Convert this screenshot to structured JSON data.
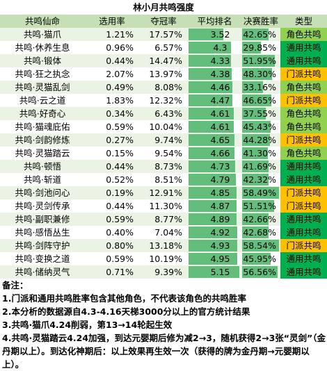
{
  "title": "林小月共鸣强度",
  "headers": [
    "共鸣仙命",
    "选用率",
    "夺冠率",
    "平均排名",
    "决赛胜率",
    "类型"
  ],
  "colors": {
    "header_bg": "#c6dfb4",
    "row_a": "#ebf3e4",
    "row_b": "#ffffff",
    "rank_bar": "#63be7b",
    "win_bar": "#63be7b",
    "type_role": "#92d050",
    "type_sect": "#ffc000",
    "type_general": "#00b050"
  },
  "chart_data": {
    "type": "table",
    "rank_scale_max": 5.3,
    "win_scale_max": 60,
    "rows": [
      {
        "name": "共鸣·猫爪",
        "pick": "1.21%",
        "champ": "17.57%",
        "rank": 3.52,
        "rank_label": "3.52",
        "win": 42.65,
        "win_label": "42.65%",
        "type": "角色共鸣",
        "type_key": "role"
      },
      {
        "name": "共鸣·休养生息",
        "pick": "0.96%",
        "champ": "6.57%",
        "rank": 4.3,
        "rank_label": "4.3",
        "win": 29.85,
        "win_label": "29.85%",
        "type": "通用共鸣",
        "type_key": "general"
      },
      {
        "name": "共鸣·锻体",
        "pick": "0.44%",
        "champ": "14.47%",
        "rank": 4.33,
        "rank_label": "4.33",
        "win": 51.95,
        "win_label": "51.95%",
        "type": "通用共鸣",
        "type_key": "general"
      },
      {
        "name": "共鸣·狂之执念",
        "pick": "2.07%",
        "champ": "13.97%",
        "rank": 4.38,
        "rank_label": "4.38",
        "win": 48.3,
        "win_label": "48.30%",
        "type": "门派共鸣",
        "type_key": "sect"
      },
      {
        "name": "共鸣·灵猫乱剑",
        "pick": "0.49%",
        "champ": "8.08%",
        "rank": 4.46,
        "rank_label": "4.46",
        "win": 33.16,
        "win_label": "33.16%",
        "type": "角色共鸣",
        "type_key": "role"
      },
      {
        "name": "共鸣·云之道",
        "pick": "1.83%",
        "champ": "12.32%",
        "rank": 4.47,
        "rank_label": "4.47",
        "win": 46.65,
        "win_label": "46.65%",
        "type": "门派共鸣",
        "type_key": "sect"
      },
      {
        "name": "共鸣·好奇心",
        "pick": "0.34%",
        "champ": "6.43%",
        "rank": 4.61,
        "rank_label": "4.61",
        "win": 37.55,
        "win_label": "37.55%",
        "type": "角色共鸣",
        "type_key": "role"
      },
      {
        "name": "共鸣·猫魂庇佑",
        "pick": "0.59%",
        "champ": "10.04%",
        "rank": 4.61,
        "rank_label": "4.61",
        "win": 45.43,
        "win_label": "45.43%",
        "type": "角色共鸣",
        "type_key": "role"
      },
      {
        "name": "共鸣·剑韵修炼",
        "pick": "0.27%",
        "champ": "9.74%",
        "rank": 4.65,
        "rank_label": "4.65",
        "win": 44.28,
        "win_label": "44.28%",
        "type": "门派共鸣",
        "type_key": "sect"
      },
      {
        "name": "共鸣·灵猫踏云",
        "pick": "0.15%",
        "champ": "9.54%",
        "rank": 4.66,
        "rank_label": "4.66",
        "win": 41.3,
        "win_label": "41.30%",
        "type": "角色共鸣",
        "type_key": "role"
      },
      {
        "name": "共鸣·顿悟",
        "pick": "0.44%",
        "champ": "8.73%",
        "rank": 4.73,
        "rank_label": "4.73",
        "win": 41.69,
        "win_label": "41.69%",
        "type": "通用共鸣",
        "type_key": "general"
      },
      {
        "name": "共鸣·斩道",
        "pick": "0.52%",
        "champ": "8.51%",
        "rank": 4.79,
        "rank_label": "4.79",
        "win": 42.32,
        "win_label": "42.32%",
        "type": "通用共鸣",
        "type_key": "general"
      },
      {
        "name": "共鸣·剑池问心",
        "pick": "0.19%",
        "champ": "12.91%",
        "rank": 4.85,
        "rank_label": "4.85",
        "win": 58.49,
        "win_label": "58.49%",
        "type": "门派共鸣",
        "type_key": "sect"
      },
      {
        "name": "共鸣·灵剑传承",
        "pick": "0.44%",
        "champ": "11.30%",
        "rank": 4.87,
        "rank_label": "4.87",
        "win": 51.51,
        "win_label": "51.51%",
        "type": "门派共鸣",
        "type_key": "sect"
      },
      {
        "name": "共鸣·副职兼修",
        "pick": "0.59%",
        "champ": "8.77%",
        "rank": 4.89,
        "rank_label": "4.89",
        "win": 42.66,
        "win_label": "42.66%",
        "type": "通用共鸣",
        "type_key": "general"
      },
      {
        "name": "共鸣·感悟丛生",
        "pick": "0.40%",
        "champ": "7.04%",
        "rank": 4.92,
        "rank_label": "4.92",
        "win": 42.68,
        "win_label": "42.68%",
        "type": "通用共鸣",
        "type_key": "general"
      },
      {
        "name": "共鸣·剑阵守护",
        "pick": "0.80%",
        "champ": "13.18%",
        "rank": 4.93,
        "rank_label": "4.93",
        "win": 58.54,
        "win_label": "58.54%",
        "type": "门派共鸣",
        "type_key": "sect"
      },
      {
        "name": "共鸣·变换之道",
        "pick": "0.59%",
        "champ": "10.19%",
        "rank": 4.95,
        "rank_label": "4.95",
        "win": 45.95,
        "win_label": "45.95%",
        "type": "通用共鸣",
        "type_key": "general"
      },
      {
        "name": "共鸣·储纳灵气",
        "pick": "0.71%",
        "champ": "9.39%",
        "rank": 5.15,
        "rank_label": "5.15",
        "win": 56.56,
        "win_label": "56.56%",
        "type": "通用共鸣",
        "type_key": "general"
      }
    ]
  },
  "notes": {
    "heading": "备注：",
    "items": [
      "1.门派和通用共鸣胜率包含其他角色，不代表该角色的共鸣胜率",
      "2.本分析的数据源自4.3-4.16天梯3000分以上的官方统计结果",
      "3.共鸣·猫爪4.24削弱，第13→14轮起生效",
      "4.共鸣·灵猫踏云4.24加强，到达元婴期后修为减2→3，随机获得2→3张“灵剑”（金丹期以上）。到达化神期后：以上效果再生效一次（获得的牌为金丹期→元婴期以上）。"
    ]
  }
}
